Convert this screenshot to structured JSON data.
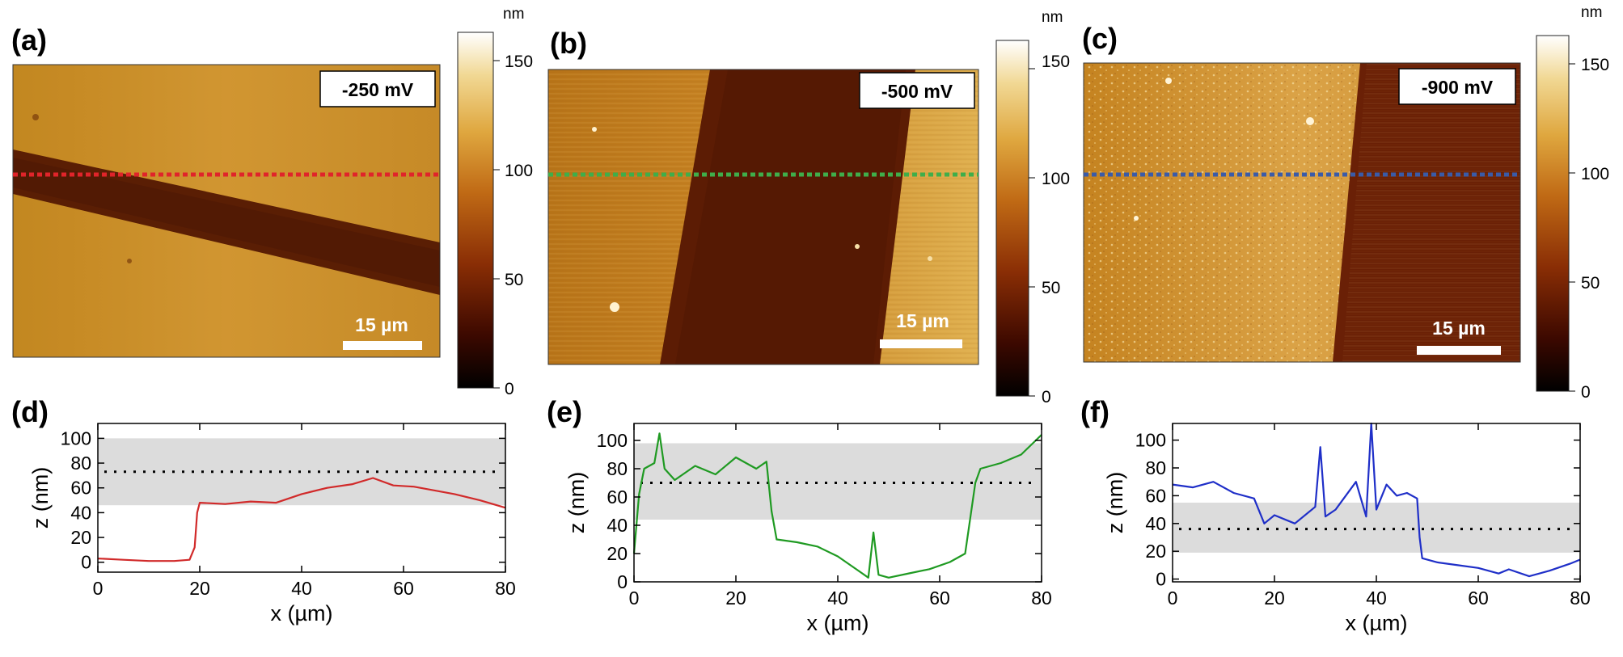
{
  "afm_panels": [
    {
      "panel_label": "(a)",
      "voltage": "-250 mV",
      "scale_bar": "15 µm",
      "colorbar_unit": "nm",
      "colorbar_ticks": [
        "0",
        "50",
        "100",
        "150"
      ],
      "line_color": "#e0242a"
    },
    {
      "panel_label": "(b)",
      "voltage": "-500 mV",
      "scale_bar": "15 µm",
      "colorbar_unit": "nm",
      "colorbar_ticks": [
        "0",
        "50",
        "100",
        "150"
      ],
      "line_color": "#3fae4a"
    },
    {
      "panel_label": "(c)",
      "voltage": "-900 mV",
      "scale_bar": "15 µm",
      "colorbar_unit": "nm",
      "colorbar_ticks": [
        "0",
        "50",
        "100",
        "150"
      ],
      "line_color": "#3a5ba8"
    }
  ],
  "colors": {
    "afm_dark": "#1a0500",
    "afm_mid": "#8a3a05",
    "afm_light": "#e2b048",
    "afm_white": "#fffaf0",
    "profile_d": "#d12a2a",
    "profile_e": "#1f9a22",
    "profile_f": "#1f2fc8",
    "band": "#dcdcdc"
  },
  "chart_data": [
    {
      "type": "line",
      "panel_label": "(d)",
      "xlabel": "x (µm)",
      "ylabel": "z (nm)",
      "xlim": [
        0,
        80
      ],
      "ylim": [
        -8,
        112
      ],
      "xticks": [
        0,
        20,
        40,
        60,
        80
      ],
      "yticks": [
        0,
        20,
        40,
        60,
        80,
        100
      ],
      "band": [
        46,
        100
      ],
      "dotted_reference": 73,
      "grid": false,
      "series": [
        {
          "color": "#d12a2a",
          "x": [
            0,
            5,
            10,
            15,
            18,
            19,
            19.5,
            20,
            25,
            30,
            35,
            40,
            45,
            50,
            54,
            58,
            62,
            66,
            70,
            75,
            80
          ],
          "y": [
            3,
            2,
            1,
            1,
            2,
            12,
            40,
            48,
            47,
            49,
            48,
            55,
            60,
            63,
            68,
            62,
            61,
            58,
            55,
            50,
            44
          ]
        }
      ]
    },
    {
      "type": "line",
      "panel_label": "(e)",
      "xlabel": "x (µm)",
      "ylabel": "z (nm)",
      "xlim": [
        0,
        80
      ],
      "ylim": [
        0,
        112
      ],
      "xticks": [
        0,
        20,
        40,
        60,
        80
      ],
      "yticks": [
        0,
        20,
        40,
        60,
        80,
        100
      ],
      "band": [
        44,
        98
      ],
      "dotted_reference": 70,
      "grid": false,
      "series": [
        {
          "color": "#1f9a22",
          "x": [
            0,
            1,
            2,
            4,
            5,
            6,
            8,
            12,
            16,
            20,
            24,
            26,
            27,
            28,
            32,
            36,
            40,
            44,
            46,
            47,
            48,
            50,
            54,
            58,
            62,
            65,
            66,
            67,
            68,
            72,
            76,
            80
          ],
          "y": [
            20,
            62,
            80,
            84,
            105,
            80,
            72,
            82,
            76,
            88,
            80,
            85,
            50,
            30,
            28,
            25,
            18,
            8,
            3,
            35,
            5,
            3,
            6,
            9,
            14,
            20,
            45,
            70,
            80,
            84,
            90,
            104
          ]
        }
      ]
    },
    {
      "type": "line",
      "panel_label": "(f)",
      "xlabel": "x (µm)",
      "ylabel": "z (nm)",
      "xlim": [
        0,
        80
      ],
      "ylim": [
        -2,
        112
      ],
      "xticks": [
        0,
        20,
        40,
        60,
        80
      ],
      "yticks": [
        0,
        20,
        40,
        60,
        80,
        100
      ],
      "band": [
        19,
        55
      ],
      "dotted_reference": 36,
      "grid": false,
      "series": [
        {
          "color": "#1f2fc8",
          "x": [
            0,
            4,
            8,
            12,
            16,
            18,
            20,
            24,
            28,
            29,
            30,
            32,
            36,
            38,
            39,
            40,
            42,
            44,
            46,
            48,
            48.5,
            49,
            52,
            56,
            60,
            64,
            66,
            70,
            74,
            78,
            80
          ],
          "y": [
            68,
            66,
            70,
            62,
            58,
            40,
            46,
            40,
            52,
            95,
            45,
            50,
            70,
            45,
            112,
            50,
            68,
            60,
            62,
            58,
            30,
            15,
            12,
            10,
            8,
            4,
            7,
            2,
            6,
            11,
            14
          ]
        }
      ]
    }
  ]
}
